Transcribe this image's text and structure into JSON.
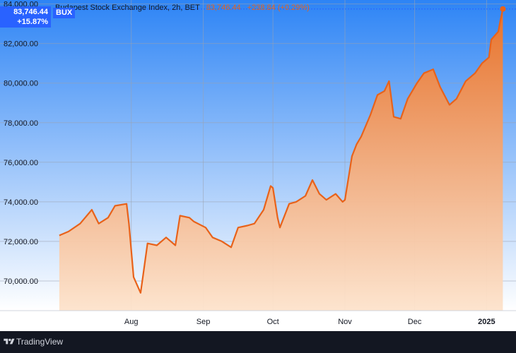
{
  "header": {
    "name": "Budapest Stock Exchange Index, 2h, BET",
    "last": "83,746.44",
    "change": "+238.84 (+0.29%)",
    "badge_price": "83,746.44",
    "badge_change": "+15.87%",
    "symbol": "BUX"
  },
  "footer": {
    "brand": "TradingView"
  },
  "colors": {
    "line": "#e8621a",
    "area_top": "#e8722a",
    "area_bottom": "#fde3cc",
    "bg_top": "#2d84f5",
    "bg_bottom": "#ffffff",
    "badge": "#2962ff",
    "grid": "#9aa2b1"
  },
  "chart_data": {
    "type": "area",
    "title": "",
    "xlabel": "",
    "ylabel": "",
    "ylim": [
      68500,
      84200
    ],
    "ytick_labels": [
      "84,000.00",
      "82,000.00",
      "80,000.00",
      "78,000.00",
      "76,000.00",
      "74,000.00",
      "72,000.00",
      "70,000.00"
    ],
    "ytick_values": [
      84000,
      82000,
      80000,
      78000,
      76000,
      74000,
      72000,
      70000
    ],
    "xtick_labels": [
      "Aug",
      "Sep",
      "Oct",
      "Nov",
      "Dec",
      "2025"
    ],
    "xtick_dates": [
      "2024-08-01",
      "2024-09-01",
      "2024-10-01",
      "2024-11-01",
      "2024-12-01",
      "2025-01-01"
    ],
    "xtick_bold": [
      false,
      false,
      false,
      false,
      false,
      true
    ],
    "xlim": [
      "2024-06-28",
      "2025-01-10"
    ],
    "grid": true,
    "series": [
      {
        "x": [
          "2024-07-01",
          "2024-07-05",
          "2024-07-10",
          "2024-07-15",
          "2024-07-18",
          "2024-07-22",
          "2024-07-25",
          "2024-07-30",
          "2024-07-31",
          "2024-08-02",
          "2024-08-05",
          "2024-08-06",
          "2024-08-08",
          "2024-08-12",
          "2024-08-16",
          "2024-08-20",
          "2024-08-22",
          "2024-08-26",
          "2024-08-28",
          "2024-09-02",
          "2024-09-05",
          "2024-09-09",
          "2024-09-13",
          "2024-09-16",
          "2024-09-20",
          "2024-09-23",
          "2024-09-27",
          "2024-09-30",
          "2024-10-01",
          "2024-10-03",
          "2024-10-04",
          "2024-10-08",
          "2024-10-11",
          "2024-10-15",
          "2024-10-18",
          "2024-10-21",
          "2024-10-24",
          "2024-10-28",
          "2024-10-31",
          "2024-11-01",
          "2024-11-04",
          "2024-11-06",
          "2024-11-08",
          "2024-11-12",
          "2024-11-15",
          "2024-11-18",
          "2024-11-20",
          "2024-11-22",
          "2024-11-25",
          "2024-11-28",
          "2024-12-02",
          "2024-12-05",
          "2024-12-09",
          "2024-12-12",
          "2024-12-16",
          "2024-12-19",
          "2024-12-23",
          "2024-12-27",
          "2024-12-30",
          "2025-01-02",
          "2025-01-03",
          "2025-01-06",
          "2025-01-07",
          "2025-01-08"
        ],
        "values": [
          72300,
          72500,
          72900,
          73600,
          72900,
          73200,
          73800,
          73900,
          72900,
          70200,
          69400,
          70200,
          71900,
          71800,
          72200,
          71800,
          73300,
          73200,
          73000,
          72700,
          72200,
          72000,
          71700,
          72700,
          72800,
          72900,
          73600,
          74800,
          74700,
          73200,
          72700,
          73900,
          74000,
          74300,
          75100,
          74400,
          74100,
          74400,
          74000,
          74100,
          76300,
          76900,
          77300,
          78400,
          79400,
          79600,
          80100,
          78300,
          78200,
          79200,
          80000,
          80500,
          80700,
          79800,
          78900,
          79200,
          80100,
          80500,
          81000,
          81300,
          82200,
          82600,
          83200,
          83746
        ]
      }
    ]
  }
}
